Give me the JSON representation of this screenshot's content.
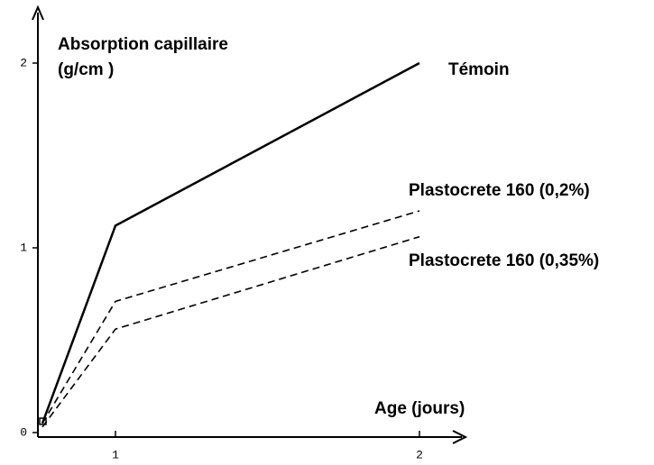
{
  "chart_data": {
    "type": "line",
    "y_label_line1": "Absorption capillaire",
    "y_label_line2": "(g/cm     )",
    "x_label": "Age (jours)",
    "x": [
      0,
      1,
      2
    ],
    "xlim": [
      0,
      2
    ],
    "xticks": [
      1,
      2
    ],
    "ylim": [
      0,
      2
    ],
    "yticks": [
      0,
      1,
      2
    ],
    "series": [
      {
        "name": "Témoin",
        "color": "#000000",
        "dashed": false,
        "values": [
          0.05,
          1.12,
          2.0
        ]
      },
      {
        "name": "Plastocrete 160 (0,2%)",
        "color": "#000000",
        "dashed": true,
        "values": [
          0.05,
          0.71,
          1.2
        ]
      },
      {
        "name": "Plastocrete 160 (0,35%)",
        "color": "#000000",
        "dashed": true,
        "values": [
          0.03,
          0.56,
          1.06
        ]
      }
    ]
  }
}
